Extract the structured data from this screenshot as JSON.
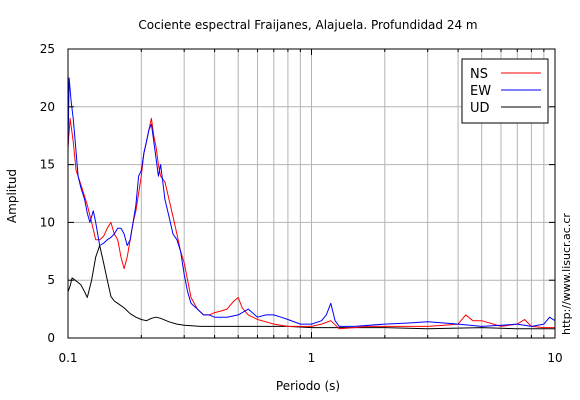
{
  "chart_data": {
    "type": "line",
    "title": "Cociente espectral Fraijanes, Alajuela. Profundidad 24 m",
    "xlabel": "Periodo (s)",
    "ylabel": "Amplitud",
    "xscale": "log",
    "xlim": [
      0.1,
      10
    ],
    "ylim": [
      0,
      25
    ],
    "xticks": [
      {
        "value": 0.1,
        "label": "0.1"
      },
      {
        "value": 1,
        "label": "1"
      },
      {
        "value": 10,
        "label": "10"
      }
    ],
    "yticks": [
      {
        "value": 0,
        "label": "0"
      },
      {
        "value": 5,
        "label": "5"
      },
      {
        "value": 10,
        "label": "10"
      },
      {
        "value": 15,
        "label": "15"
      },
      {
        "value": 20,
        "label": "20"
      },
      {
        "value": 25,
        "label": "25"
      }
    ],
    "grid": true,
    "legend_position": "top-right",
    "credit": "http://www.lisucr.ac.cr",
    "series": [
      {
        "name": "NS",
        "color": "#ff0000",
        "points": [
          [
            0.1,
            16.5
          ],
          [
            0.102,
            19.0
          ],
          [
            0.105,
            17.0
          ],
          [
            0.108,
            14.5
          ],
          [
            0.112,
            13.5
          ],
          [
            0.116,
            12.5
          ],
          [
            0.12,
            11.5
          ],
          [
            0.125,
            10.0
          ],
          [
            0.13,
            8.5
          ],
          [
            0.135,
            8.5
          ],
          [
            0.14,
            8.8
          ],
          [
            0.145,
            9.5
          ],
          [
            0.15,
            10.0
          ],
          [
            0.155,
            9.0
          ],
          [
            0.16,
            8.5
          ],
          [
            0.165,
            7.0
          ],
          [
            0.17,
            6.0
          ],
          [
            0.175,
            7.0
          ],
          [
            0.18,
            8.5
          ],
          [
            0.185,
            10.0
          ],
          [
            0.19,
            11.0
          ],
          [
            0.195,
            12.5
          ],
          [
            0.2,
            14.0
          ],
          [
            0.205,
            16.0
          ],
          [
            0.21,
            17.0
          ],
          [
            0.215,
            18.0
          ],
          [
            0.22,
            19.0
          ],
          [
            0.225,
            17.5
          ],
          [
            0.23,
            16.5
          ],
          [
            0.235,
            15.0
          ],
          [
            0.24,
            14.0
          ],
          [
            0.25,
            13.5
          ],
          [
            0.26,
            12.0
          ],
          [
            0.27,
            10.5
          ],
          [
            0.28,
            9.0
          ],
          [
            0.29,
            7.5
          ],
          [
            0.3,
            6.5
          ],
          [
            0.31,
            5.0
          ],
          [
            0.32,
            3.5
          ],
          [
            0.34,
            2.5
          ],
          [
            0.36,
            2.0
          ],
          [
            0.38,
            2.0
          ],
          [
            0.4,
            2.2
          ],
          [
            0.42,
            2.3
          ],
          [
            0.45,
            2.5
          ],
          [
            0.48,
            3.2
          ],
          [
            0.5,
            3.5
          ],
          [
            0.52,
            2.6
          ],
          [
            0.55,
            2.0
          ],
          [
            0.6,
            1.6
          ],
          [
            0.65,
            1.4
          ],
          [
            0.7,
            1.2
          ],
          [
            0.8,
            1.0
          ],
          [
            0.9,
            1.0
          ],
          [
            1.0,
            1.0
          ],
          [
            1.1,
            1.2
          ],
          [
            1.2,
            1.5
          ],
          [
            1.3,
            0.8
          ],
          [
            1.5,
            0.9
          ],
          [
            1.7,
            1.0
          ],
          [
            2.0,
            1.0
          ],
          [
            2.5,
            1.0
          ],
          [
            3.0,
            1.0
          ],
          [
            3.5,
            1.1
          ],
          [
            4.0,
            1.2
          ],
          [
            4.3,
            2.0
          ],
          [
            4.6,
            1.5
          ],
          [
            5.0,
            1.5
          ],
          [
            6.0,
            1.0
          ],
          [
            7.0,
            1.2
          ],
          [
            7.5,
            1.6
          ],
          [
            8.0,
            1.0
          ],
          [
            9.0,
            0.9
          ],
          [
            10.0,
            0.9
          ]
        ]
      },
      {
        "name": "EW",
        "color": "#0000ff",
        "points": [
          [
            0.1,
            16.0
          ],
          [
            0.101,
            22.5
          ],
          [
            0.103,
            20.5
          ],
          [
            0.105,
            19.0
          ],
          [
            0.107,
            17.0
          ],
          [
            0.11,
            14.0
          ],
          [
            0.113,
            13.0
          ],
          [
            0.117,
            12.0
          ],
          [
            0.12,
            10.8
          ],
          [
            0.123,
            10.0
          ],
          [
            0.127,
            11.0
          ],
          [
            0.13,
            10.0
          ],
          [
            0.135,
            8.0
          ],
          [
            0.14,
            8.2
          ],
          [
            0.145,
            8.5
          ],
          [
            0.15,
            8.7
          ],
          [
            0.155,
            9.0
          ],
          [
            0.16,
            9.5
          ],
          [
            0.165,
            9.5
          ],
          [
            0.17,
            9.0
          ],
          [
            0.175,
            8.0
          ],
          [
            0.18,
            8.5
          ],
          [
            0.185,
            10.0
          ],
          [
            0.19,
            11.5
          ],
          [
            0.195,
            14.0
          ],
          [
            0.2,
            14.5
          ],
          [
            0.205,
            16.0
          ],
          [
            0.21,
            17.0
          ],
          [
            0.215,
            18.0
          ],
          [
            0.22,
            18.5
          ],
          [
            0.225,
            17.0
          ],
          [
            0.23,
            15.5
          ],
          [
            0.235,
            14.0
          ],
          [
            0.24,
            15.0
          ],
          [
            0.245,
            13.5
          ],
          [
            0.25,
            12.0
          ],
          [
            0.26,
            10.5
          ],
          [
            0.27,
            9.0
          ],
          [
            0.28,
            8.5
          ],
          [
            0.29,
            7.5
          ],
          [
            0.3,
            5.5
          ],
          [
            0.31,
            4.0
          ],
          [
            0.32,
            3.0
          ],
          [
            0.34,
            2.5
          ],
          [
            0.36,
            2.0
          ],
          [
            0.38,
            2.0
          ],
          [
            0.4,
            1.8
          ],
          [
            0.45,
            1.8
          ],
          [
            0.5,
            2.0
          ],
          [
            0.55,
            2.5
          ],
          [
            0.6,
            1.8
          ],
          [
            0.65,
            2.0
          ],
          [
            0.7,
            2.0
          ],
          [
            0.75,
            1.8
          ],
          [
            0.8,
            1.6
          ],
          [
            0.9,
            1.2
          ],
          [
            1.0,
            1.2
          ],
          [
            1.1,
            1.5
          ],
          [
            1.15,
            2.0
          ],
          [
            1.2,
            3.0
          ],
          [
            1.25,
            1.5
          ],
          [
            1.3,
            1.0
          ],
          [
            1.5,
            1.0
          ],
          [
            2.0,
            1.2
          ],
          [
            2.5,
            1.3
          ],
          [
            3.0,
            1.4
          ],
          [
            3.5,
            1.3
          ],
          [
            4.0,
            1.2
          ],
          [
            5.0,
            1.0
          ],
          [
            6.0,
            1.1
          ],
          [
            7.0,
            1.2
          ],
          [
            8.0,
            1.0
          ],
          [
            9.0,
            1.2
          ],
          [
            9.5,
            1.8
          ],
          [
            10.0,
            1.5
          ]
        ]
      },
      {
        "name": "UD",
        "color": "#000000",
        "points": [
          [
            0.1,
            4.0
          ],
          [
            0.102,
            4.5
          ],
          [
            0.104,
            5.2
          ],
          [
            0.107,
            5.0
          ],
          [
            0.11,
            4.8
          ],
          [
            0.113,
            4.6
          ],
          [
            0.117,
            4.0
          ],
          [
            0.12,
            3.5
          ],
          [
            0.125,
            5.0
          ],
          [
            0.13,
            7.0
          ],
          [
            0.135,
            8.0
          ],
          [
            0.14,
            6.5
          ],
          [
            0.145,
            5.0
          ],
          [
            0.15,
            3.6
          ],
          [
            0.155,
            3.2
          ],
          [
            0.16,
            3.0
          ],
          [
            0.17,
            2.6
          ],
          [
            0.18,
            2.1
          ],
          [
            0.19,
            1.8
          ],
          [
            0.2,
            1.6
          ],
          [
            0.21,
            1.5
          ],
          [
            0.22,
            1.7
          ],
          [
            0.23,
            1.8
          ],
          [
            0.24,
            1.7
          ],
          [
            0.26,
            1.4
          ],
          [
            0.28,
            1.2
          ],
          [
            0.3,
            1.1
          ],
          [
            0.35,
            1.0
          ],
          [
            0.4,
            1.0
          ],
          [
            0.5,
            1.0
          ],
          [
            0.6,
            1.0
          ],
          [
            0.8,
            1.0
          ],
          [
            1.0,
            0.9
          ],
          [
            2.0,
            0.9
          ],
          [
            3.0,
            0.8
          ],
          [
            5.0,
            0.9
          ],
          [
            7.0,
            0.8
          ],
          [
            10.0,
            0.8
          ]
        ]
      }
    ]
  }
}
